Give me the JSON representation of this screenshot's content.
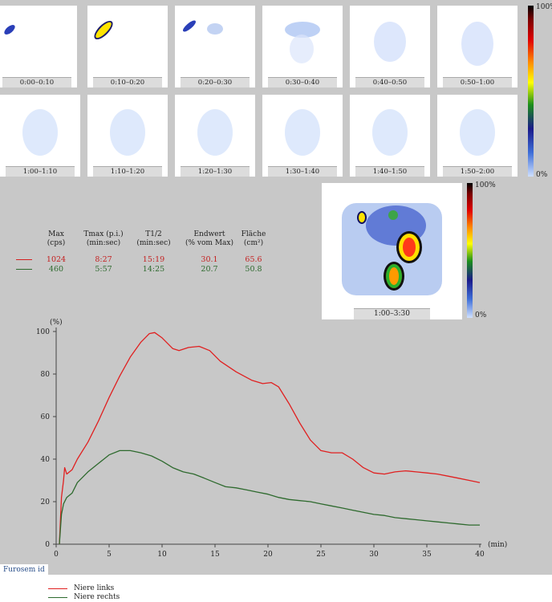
{
  "frames": [
    {
      "label": "0:00–0:10"
    },
    {
      "label": "0:10–0:20"
    },
    {
      "label": "0:20–0:30"
    },
    {
      "label": "0:30–0:40"
    },
    {
      "label": "0:40–0:50"
    },
    {
      "label": "0:50–1:00"
    },
    {
      "label": "1:00–1:10"
    },
    {
      "label": "1:10–1:20"
    },
    {
      "label": "1:20–1:30"
    },
    {
      "label": "1:30–1:40"
    },
    {
      "label": "1:40–1:50"
    },
    {
      "label": "1:50–2:00"
    }
  ],
  "colorbar_top": {
    "max_label": "100%",
    "min_label": "0%"
  },
  "colorbar_big": {
    "max_label": "100%",
    "min_label": "0%"
  },
  "summary_image": {
    "label": "1:00–3:30"
  },
  "stats": {
    "headers": [
      {
        "line1": "Max",
        "line2": "(cps)"
      },
      {
        "line1": "Tmax (p.i.)",
        "line2": "(min:sec)"
      },
      {
        "line1": "T1/2",
        "line2": "(min:sec)"
      },
      {
        "line1": "Endwert",
        "line2": "(% vom Max)"
      },
      {
        "line1": "Fläche",
        "line2": "(cm²)"
      }
    ],
    "rows": [
      {
        "series": "Niere links",
        "color": "#d42020",
        "values": [
          "1024",
          "8:27",
          "15:19",
          "30.1",
          "65.6"
        ]
      },
      {
        "series": "Niere rechts",
        "color": "#2e6a2e",
        "values": [
          "460",
          "5:57",
          "14:25",
          "20.7",
          "50.8"
        ]
      }
    ]
  },
  "chart_data": {
    "type": "line",
    "ylabel": "(%)",
    "xlabel": "(min)",
    "xlim": [
      0,
      40
    ],
    "ylim": [
      0,
      100
    ],
    "xticks": [
      "0",
      "5",
      "10",
      "15",
      "20",
      "25",
      "30",
      "35",
      "40"
    ],
    "yticks": [
      "0",
      "20",
      "40",
      "60",
      "80",
      "100"
    ],
    "series": [
      {
        "name": "Niere links",
        "color": "#e02020",
        "points": [
          [
            0.3,
            0
          ],
          [
            0.5,
            22
          ],
          [
            0.7,
            30
          ],
          [
            0.8,
            36
          ],
          [
            1.0,
            33
          ],
          [
            1.5,
            35
          ],
          [
            2,
            40
          ],
          [
            3,
            48
          ],
          [
            4,
            58
          ],
          [
            5,
            69
          ],
          [
            6,
            79
          ],
          [
            7,
            88
          ],
          [
            8,
            95
          ],
          [
            8.8,
            99
          ],
          [
            9.3,
            99.5
          ],
          [
            10,
            97
          ],
          [
            11,
            92
          ],
          [
            11.6,
            91
          ],
          [
            12.5,
            92.5
          ],
          [
            13.5,
            93
          ],
          [
            14.5,
            91
          ],
          [
            15.5,
            86
          ],
          [
            17,
            81
          ],
          [
            18.5,
            77
          ],
          [
            19.5,
            75.5
          ],
          [
            20.3,
            76
          ],
          [
            21,
            74
          ],
          [
            22,
            66
          ],
          [
            23,
            57
          ],
          [
            24,
            49
          ],
          [
            25,
            44
          ],
          [
            26,
            43
          ],
          [
            27,
            43
          ],
          [
            28,
            40
          ],
          [
            29,
            36
          ],
          [
            30,
            33.5
          ],
          [
            31,
            33
          ],
          [
            32,
            34
          ],
          [
            33,
            34.5
          ],
          [
            34,
            34
          ],
          [
            35,
            33.5
          ],
          [
            36,
            33
          ],
          [
            37,
            32
          ],
          [
            38,
            31
          ],
          [
            39,
            30
          ],
          [
            40,
            29
          ]
        ]
      },
      {
        "name": "Niere rechts",
        "color": "#2e6a2e",
        "points": [
          [
            0.3,
            0
          ],
          [
            0.5,
            14
          ],
          [
            0.7,
            19
          ],
          [
            1.0,
            22
          ],
          [
            1.5,
            24
          ],
          [
            2,
            29
          ],
          [
            3,
            34
          ],
          [
            4,
            38
          ],
          [
            5,
            42
          ],
          [
            6,
            44
          ],
          [
            7,
            44
          ],
          [
            8,
            43
          ],
          [
            9,
            41.5
          ],
          [
            10,
            39
          ],
          [
            11,
            36
          ],
          [
            12,
            34
          ],
          [
            13,
            33
          ],
          [
            14,
            31
          ],
          [
            15,
            29
          ],
          [
            16,
            27
          ],
          [
            17,
            26.5
          ],
          [
            18,
            25.5
          ],
          [
            19,
            24.5
          ],
          [
            20,
            23.5
          ],
          [
            21,
            22
          ],
          [
            22,
            21
          ],
          [
            23,
            20.5
          ],
          [
            24,
            20
          ],
          [
            25,
            19
          ],
          [
            26,
            18
          ],
          [
            27,
            17
          ],
          [
            28,
            16
          ],
          [
            29,
            15
          ],
          [
            30,
            14
          ],
          [
            31,
            13.5
          ],
          [
            32,
            12.5
          ],
          [
            33,
            12
          ],
          [
            34,
            11.5
          ],
          [
            35,
            11
          ],
          [
            36,
            10.5
          ],
          [
            37,
            10
          ],
          [
            38,
            9.5
          ],
          [
            39,
            9
          ],
          [
            40,
            9
          ]
        ]
      }
    ]
  },
  "annotation": {
    "label": "Furosem id"
  },
  "legend": [
    {
      "name": "Niere links",
      "color": "#e02020"
    },
    {
      "name": "Niere rechts",
      "color": "#2e6a2e"
    }
  ]
}
